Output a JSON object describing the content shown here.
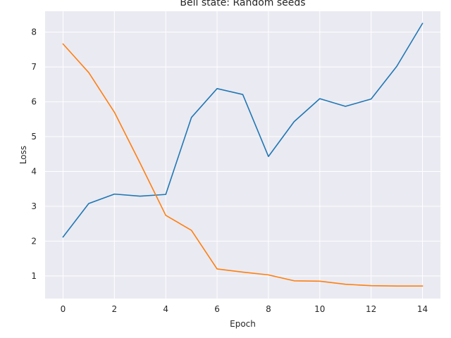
{
  "chart_data": {
    "type": "line",
    "title": "Bell state: Random seeds",
    "xlabel": "Epoch",
    "ylabel": "Loss",
    "xlim": [
      -0.7,
      14.7
    ],
    "ylim": [
      0.35,
      8.6
    ],
    "x_ticks": [
      0,
      2,
      4,
      6,
      8,
      10,
      12,
      14
    ],
    "y_ticks": [
      1,
      2,
      3,
      4,
      5,
      6,
      7,
      8
    ],
    "grid": true,
    "background": "#eaeaf2",
    "x": [
      0,
      1,
      2,
      3,
      4,
      5,
      6,
      7,
      8,
      9,
      10,
      11,
      12,
      13,
      14
    ],
    "series": [
      {
        "color": "#1f77b4",
        "values": [
          2.12,
          3.08,
          3.35,
          3.29,
          3.34,
          5.55,
          6.38,
          6.21,
          4.43,
          5.43,
          6.09,
          5.87,
          6.08,
          7.02,
          8.25
        ]
      },
      {
        "color": "#ff7f0e",
        "values": [
          7.66,
          6.84,
          5.7,
          4.24,
          2.74,
          2.31,
          1.2,
          1.11,
          1.03,
          0.86,
          0.85,
          0.76,
          0.72,
          0.71,
          0.71
        ]
      }
    ]
  }
}
